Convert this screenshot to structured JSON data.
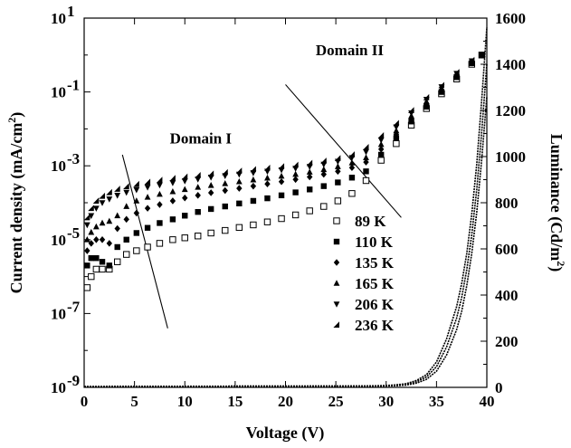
{
  "chart_data": {
    "type": "scatter",
    "xlabel": "Voltage (V)",
    "ylabel_left": {
      "main": "Current density (mA/cm",
      "sup": "2",
      "tail": ")"
    },
    "ylabel_right": {
      "main": "Luminance (Cd/m",
      "sup": "2",
      "tail": ")"
    },
    "xlim": [
      0,
      40
    ],
    "ylim_left": [
      1e-09,
      10
    ],
    "ylim_right": [
      0,
      1600
    ],
    "left_scale": "log",
    "grid": false,
    "legend_position": "center-right",
    "x_ticks": [
      "0",
      "5",
      "10",
      "15",
      "20",
      "25",
      "30",
      "35",
      "40"
    ],
    "y_left_ticks": [
      {
        "base": "10",
        "exp": "1"
      },
      {
        "base": "10",
        "exp": "-1"
      },
      {
        "base": "10",
        "exp": "-3"
      },
      {
        "base": "10",
        "exp": "-5"
      },
      {
        "base": "10",
        "exp": "-7"
      },
      {
        "base": "10",
        "exp": "-9"
      }
    ],
    "y_right_ticks": [
      "0",
      "200",
      "400",
      "600",
      "800",
      "1000",
      "1200",
      "1400",
      "1600"
    ],
    "annotations": [
      {
        "text": "Domain I",
        "x": 8.5,
        "y_log": -2.4
      },
      {
        "text": "Domain II",
        "x": 23,
        "y_log": 0.0
      }
    ],
    "domain_lines": [
      {
        "x1": 3.8,
        "y1_log": -2.7,
        "x2": 8.3,
        "y2_log": -7.4
      },
      {
        "x1": 20,
        "y1_log": -0.8,
        "x2": 31.5,
        "y2_log": -4.4
      }
    ],
    "series": [
      {
        "name": "89 K",
        "marker": "open-square",
        "x": [
          0.3,
          0.7,
          1.2,
          1.8,
          2.5,
          3.3,
          4.2,
          5.2,
          6.3,
          7.5,
          8.8,
          10,
          11.3,
          12.6,
          14,
          15.4,
          16.8,
          18.2,
          19.6,
          21,
          22.4,
          23.8,
          25.2,
          26.6,
          28,
          29.5,
          31,
          32.5,
          34,
          35.5,
          37,
          38.5,
          39.5
        ],
        "y_log": [
          -6.3,
          -6.0,
          -5.8,
          -5.8,
          -5.8,
          -5.6,
          -5.4,
          -5.3,
          -5.2,
          -5.1,
          -5.0,
          -4.95,
          -4.9,
          -4.82,
          -4.75,
          -4.67,
          -4.6,
          -4.52,
          -4.43,
          -4.33,
          -4.22,
          -4.1,
          -3.95,
          -3.75,
          -3.4,
          -2.85,
          -2.4,
          -1.9,
          -1.45,
          -1.05,
          -0.65,
          -0.25,
          0.0
        ]
      },
      {
        "name": "110 K",
        "marker": "filled-square",
        "x": [
          0.3,
          0.7,
          1.2,
          1.8,
          2.5,
          3.3,
          4.2,
          5.2,
          6.3,
          7.5,
          8.8,
          10,
          11.3,
          12.6,
          14,
          15.4,
          16.8,
          18.2,
          19.6,
          21,
          22.4,
          23.8,
          25.2,
          26.6,
          28,
          29.5,
          31,
          32.5,
          34,
          35.5,
          37,
          38.5,
          39.5
        ],
        "y_log": [
          -5.7,
          -5.5,
          -5.5,
          -5.6,
          -5.7,
          -5.2,
          -5.0,
          -4.82,
          -4.68,
          -4.55,
          -4.45,
          -4.35,
          -4.25,
          -4.17,
          -4.1,
          -4.02,
          -3.95,
          -3.88,
          -3.8,
          -3.72,
          -3.64,
          -3.55,
          -3.45,
          -3.32,
          -3.15,
          -2.7,
          -2.25,
          -1.8,
          -1.4,
          -1.0,
          -0.6,
          -0.22,
          0.0
        ]
      },
      {
        "name": "135 K",
        "marker": "diamond",
        "x": [
          0.3,
          0.7,
          1.2,
          1.8,
          2.5,
          3.3,
          4.2,
          5.2,
          6.3,
          7.5,
          8.8,
          10,
          11.3,
          12.6,
          14,
          15.4,
          16.8,
          18.2,
          19.6,
          21,
          22.4,
          23.8,
          25.2,
          26.6,
          28,
          29.5,
          31,
          32.5,
          34,
          35.5,
          37,
          38.5,
          39.5
        ],
        "y_log": [
          -5.3,
          -5.1,
          -5.0,
          -5.0,
          -5.1,
          -4.7,
          -4.45,
          -4.28,
          -4.15,
          -4.05,
          -3.95,
          -3.87,
          -3.8,
          -3.73,
          -3.67,
          -3.61,
          -3.55,
          -3.49,
          -3.43,
          -3.37,
          -3.3,
          -3.23,
          -3.15,
          -3.05,
          -2.9,
          -2.55,
          -2.15,
          -1.72,
          -1.32,
          -0.95,
          -0.55,
          -0.2,
          0.0
        ]
      },
      {
        "name": "165 K",
        "marker": "triangle-up",
        "x": [
          0.3,
          0.7,
          1.2,
          1.8,
          2.5,
          3.3,
          4.2,
          5.2,
          6.3,
          7.5,
          8.8,
          10,
          11.3,
          12.6,
          14,
          15.4,
          16.8,
          18.2,
          19.6,
          21,
          22.4,
          23.8,
          25.2,
          26.6,
          28,
          29.5,
          31,
          32.5,
          34,
          35.5,
          37,
          38.5,
          39.5
        ],
        "y_log": [
          -5.0,
          -4.8,
          -4.65,
          -4.55,
          -4.5,
          -4.35,
          -4.1,
          -3.95,
          -3.85,
          -3.77,
          -3.7,
          -3.64,
          -3.58,
          -3.53,
          -3.48,
          -3.43,
          -3.38,
          -3.33,
          -3.28,
          -3.23,
          -3.17,
          -3.1,
          -3.02,
          -2.92,
          -2.78,
          -2.42,
          -2.05,
          -1.65,
          -1.26,
          -0.9,
          -0.52,
          -0.18,
          0.0
        ]
      },
      {
        "name": "206 K",
        "marker": "triangle-down",
        "x": [
          0.3,
          0.7,
          1.2,
          1.8,
          2.5,
          3.3,
          4.2,
          5.2,
          6.3,
          7.5,
          8.8,
          10,
          11.3,
          12.6,
          14,
          15.4,
          16.8,
          18.2,
          19.6,
          21,
          22.4,
          23.8,
          25.2,
          26.6,
          28,
          29.5,
          31,
          32.5,
          34,
          35.5,
          37,
          38.5,
          39.5
        ],
        "y_log": [
          -4.6,
          -4.35,
          -4.15,
          -4.0,
          -3.9,
          -3.8,
          -3.72,
          -3.65,
          -3.58,
          -3.52,
          -3.46,
          -3.41,
          -3.36,
          -3.31,
          -3.27,
          -3.23,
          -3.19,
          -3.15,
          -3.11,
          -3.07,
          -3.02,
          -2.96,
          -2.88,
          -2.78,
          -2.62,
          -2.3,
          -1.95,
          -1.57,
          -1.2,
          -0.86,
          -0.5,
          -0.16,
          0.0
        ]
      },
      {
        "name": "236 K",
        "marker": "half-triangle",
        "x": [
          0.3,
          0.7,
          1.2,
          1.8,
          2.5,
          3.3,
          4.2,
          5.2,
          6.3,
          7.5,
          8.8,
          10,
          11.3,
          12.6,
          14,
          15.4,
          16.8,
          18.2,
          19.6,
          21,
          22.4,
          23.8,
          25.2,
          26.6,
          28,
          29.5,
          31,
          32.5,
          34,
          35.5,
          37,
          38.5,
          39.5
        ],
        "y_log": [
          -4.4,
          -4.15,
          -3.95,
          -3.82,
          -3.72,
          -3.63,
          -3.56,
          -3.5,
          -3.44,
          -3.39,
          -3.34,
          -3.3,
          -3.26,
          -3.22,
          -3.18,
          -3.14,
          -3.1,
          -3.06,
          -3.02,
          -2.98,
          -2.93,
          -2.87,
          -2.8,
          -2.7,
          -2.5,
          -2.18,
          -1.85,
          -1.5,
          -1.15,
          -0.82,
          -0.47,
          -0.14,
          0.0
        ]
      }
    ],
    "luminance_curves": {
      "axis": "right",
      "x": [
        0,
        5,
        10,
        15,
        20,
        25,
        28,
        30,
        31,
        32,
        33,
        34,
        35,
        36,
        37,
        37.5,
        38,
        38.5,
        39,
        39.5,
        40
      ],
      "curves": [
        [
          3,
          4,
          4,
          5,
          5,
          5,
          5,
          6,
          7,
          10,
          18,
          35,
          70,
          140,
          250,
          330,
          440,
          580,
          760,
          990,
          1260
        ],
        [
          3,
          4,
          4,
          5,
          5,
          5,
          6,
          7,
          9,
          13,
          24,
          45,
          90,
          175,
          300,
          390,
          510,
          660,
          860,
          1110,
          1400
        ],
        [
          3,
          4,
          4,
          5,
          5,
          6,
          6,
          8,
          11,
          16,
          30,
          55,
          110,
          210,
          350,
          450,
          580,
          750,
          970,
          1250,
          1560
        ]
      ]
    }
  }
}
